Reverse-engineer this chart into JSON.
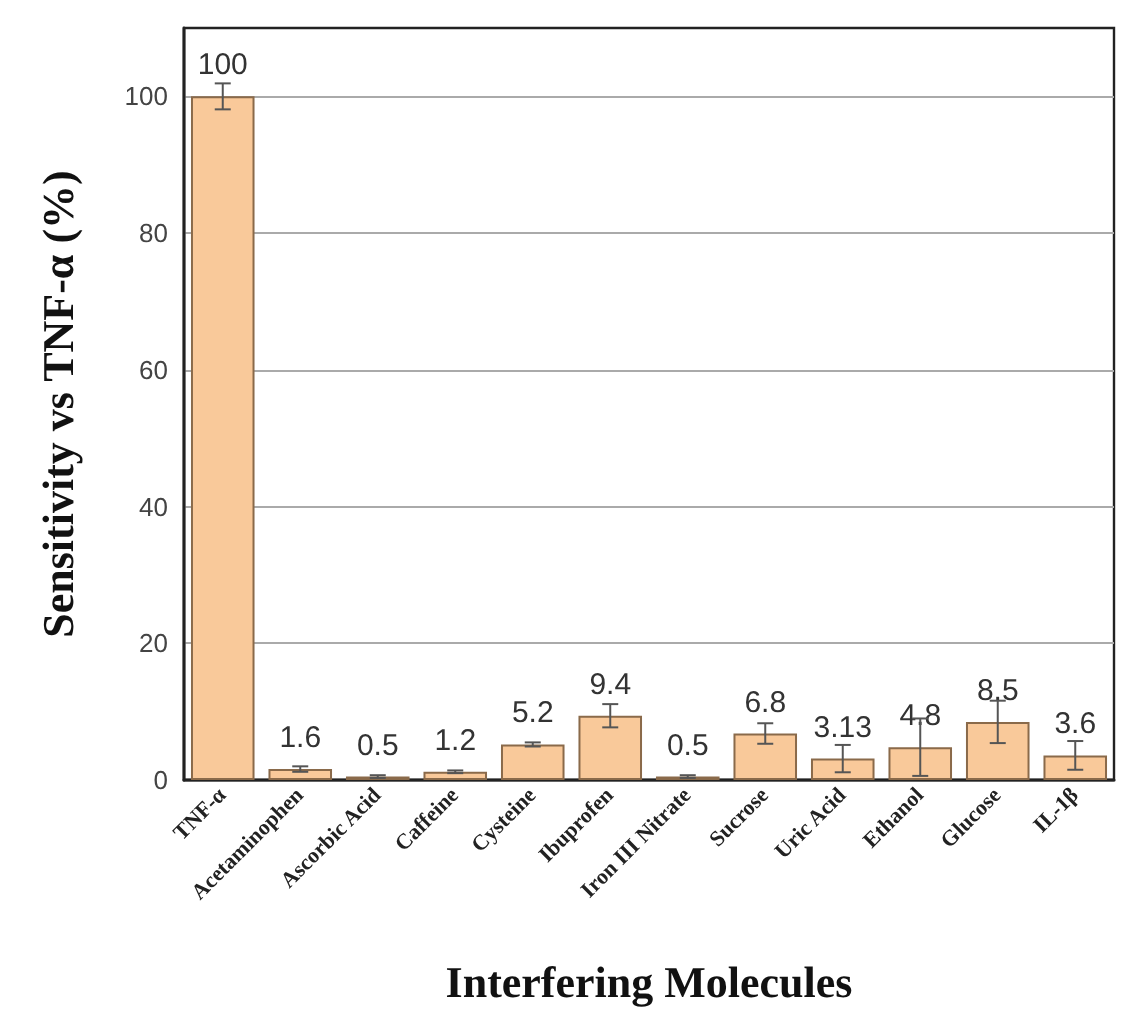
{
  "chart_data": {
    "type": "bar",
    "xlabel": "Interfering Molecules",
    "ylabel": "Sensitivity vs TNF-α (%)",
    "categories": [
      "TNF-α",
      "Acetaminophen",
      "Ascorbic Acid",
      "Caffeine",
      "Cysteine",
      "Ibuprofen",
      "Iron III Nitrate",
      "Sucrose",
      "Uric Acid",
      "Ethanol",
      "Glucose",
      "IL-1β"
    ],
    "values": [
      100,
      1.6,
      0.5,
      1.2,
      5.2,
      9.4,
      0.5,
      6.8,
      3.13,
      4.8,
      8.5,
      3.6
    ],
    "errors": [
      1.9,
      0.4,
      0.2,
      0.2,
      0.3,
      1.7,
      0.2,
      1.5,
      2.0,
      4.2,
      3.1,
      2.1
    ],
    "color": "#f9c99a",
    "ylim": [
      0,
      110
    ],
    "yticks": [
      0,
      20,
      40,
      60,
      80,
      100
    ],
    "grid": "y",
    "data_labels": true
  }
}
